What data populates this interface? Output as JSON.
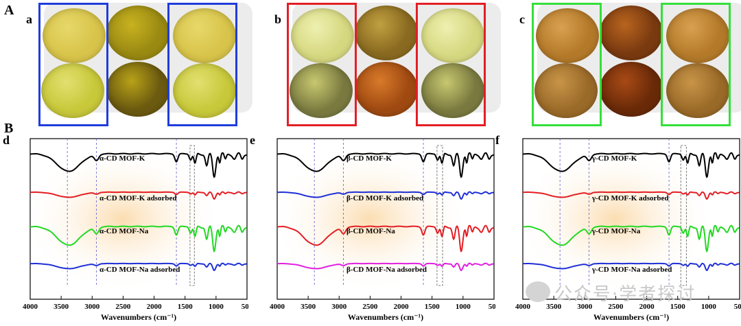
{
  "section_labels": {
    "A": "A",
    "B": "B"
  },
  "photo_panels": [
    {
      "label": "a",
      "frame_color": "#1f3cdc",
      "dishes": [
        [
          "#d8c44a",
          "#e6d86a"
        ],
        [
          "#9a8a12",
          "#c8b220"
        ],
        [
          "#d8c44a",
          "#e6d86a"
        ],
        [
          "#c8c83a",
          "#e2e070"
        ],
        [
          "#6b5a10",
          "#b8a218"
        ],
        [
          "#c8c83a",
          "#e2e070"
        ]
      ]
    },
    {
      "label": "b",
      "frame_color": "#e31e24",
      "dishes": [
        [
          "#d6d880",
          "#eef0b0"
        ],
        [
          "#8a6a20",
          "#c0a040"
        ],
        [
          "#d6d880",
          "#eef0b0"
        ],
        [
          "#7a7a40",
          "#c8c870"
        ],
        [
          "#a04a12",
          "#d87a2a"
        ],
        [
          "#7a7a40",
          "#c8c870"
        ]
      ]
    },
    {
      "label": "c",
      "frame_color": "#33e03a",
      "dishes": [
        [
          "#b47a2a",
          "#d8a050"
        ],
        [
          "#7a3a10",
          "#b8641e"
        ],
        [
          "#b47a2a",
          "#d8a050"
        ],
        [
          "#9a6a28",
          "#c89448"
        ],
        [
          "#6a2a08",
          "#a84a16"
        ],
        [
          "#9a6a28",
          "#c89448"
        ]
      ]
    }
  ],
  "spectra": [
    {
      "label": "d",
      "xlabel": "Wavenumbers (cm⁻¹)",
      "ticks": [
        "4000",
        "3500",
        "3000",
        "2500",
        "2000",
        "1500",
        "1000",
        "500"
      ],
      "dashed_lines": [
        3400,
        2930,
        1640
      ],
      "box_range": [
        1420,
        1350
      ],
      "curves": [
        {
          "name": "α-CD MOF-K",
          "color": "#000000",
          "style": "strong"
        },
        {
          "name": "α-CD MOF-K adsorbed",
          "color": "#e31e24",
          "style": "weak"
        },
        {
          "name": "α-CD MOF-Na",
          "color": "#22d822",
          "style": "strong"
        },
        {
          "name": "α-CD MOF-Na adsorbed",
          "color": "#1f2fd6",
          "style": "weak"
        }
      ]
    },
    {
      "label": "e",
      "xlabel": "Wavenumbers (cm⁻¹)",
      "ticks": [
        "4000",
        "3500",
        "3000",
        "2500",
        "2000",
        "1500",
        "1000",
        "500"
      ],
      "dashed_lines": [
        3400,
        2930,
        1640
      ],
      "box_range": [
        1420,
        1330
      ],
      "curves": [
        {
          "name": "β-CD MOF-K",
          "color": "#000000",
          "style": "strong"
        },
        {
          "name": "β-CD MOF-K adsorbed",
          "color": "#1f2fd6",
          "style": "weak"
        },
        {
          "name": "β-CD MOF-Na",
          "color": "#e31e24",
          "style": "strong"
        },
        {
          "name": "β-CD MOF-Na adsorbed",
          "color": "#e020e0",
          "style": "weak"
        }
      ]
    },
    {
      "label": "f",
      "xlabel": "Wavenumbers (cm⁻¹)",
      "ticks": [
        "4000",
        "3500",
        "3000",
        "2500",
        "2000",
        "1500",
        "1000",
        "500"
      ],
      "dashed_lines": [
        3400,
        2930,
        1640
      ],
      "box_range": [
        1450,
        1360
      ],
      "curves": [
        {
          "name": "γ-CD MOF-K",
          "color": "#000000",
          "style": "strong"
        },
        {
          "name": "γ-CD MOF-K adsorbed",
          "color": "#e31e24",
          "style": "weak"
        },
        {
          "name": "γ-CD MOF-Na",
          "color": "#22d822",
          "style": "strong"
        },
        {
          "name": "γ-CD MOF-Na adsorbed",
          "color": "#1f2fd6",
          "style": "weak"
        }
      ]
    }
  ],
  "watermark": {
    "text": "公众号·学者探讨"
  }
}
